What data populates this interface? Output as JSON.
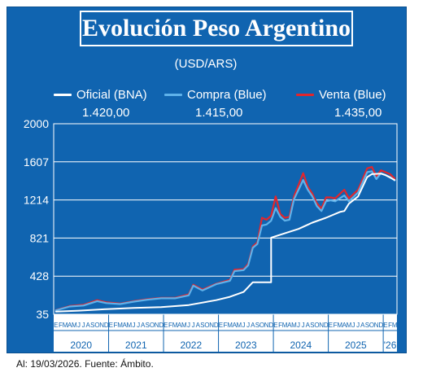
{
  "title": "Evolución Peso Argentino",
  "unit": "(USD/ARS)",
  "footnote": "Al: 19/03/2026. Fuente: Ámbito.",
  "colors": {
    "background": "#1064b0",
    "oficial": "#ffffff",
    "compra": "#5fb2ea",
    "venta": "#e2262c"
  },
  "legend": [
    {
      "name": "Oficial (BNA)",
      "value": "1.420,00"
    },
    {
      "name": "Compra (Blue)",
      "value": "1.415,00"
    },
    {
      "name": "Venta (Blue)",
      "value": "1.435,00"
    }
  ],
  "chart_data": {
    "type": "line",
    "title": "Evolución Peso Argentino",
    "ylabel": "(USD/ARS)",
    "ylim": [
      35,
      2000
    ],
    "xlim": [
      "2020-01",
      "2026-03"
    ],
    "yticks": [
      "2000",
      "1607",
      "1214",
      "821",
      "428",
      "35"
    ],
    "month_ticks": [
      "E",
      "F",
      "M",
      "A",
      "M",
      "J",
      "J",
      "A",
      "S",
      "O",
      "N",
      "D",
      "E",
      "F",
      "M",
      "A",
      "M",
      "J",
      "J",
      "A",
      "S",
      "O",
      "N",
      "D",
      "E",
      "F",
      "M",
      "A",
      "M",
      "J",
      "J",
      "A",
      "S",
      "O",
      "N",
      "D",
      "E",
      "F",
      "M",
      "A",
      "M",
      "J",
      "J",
      "A",
      "S",
      "O",
      "N",
      "D",
      "E",
      "F",
      "M",
      "A",
      "M",
      "J",
      "J",
      "A",
      "S",
      "O",
      "N",
      "D",
      "E",
      "F",
      "M",
      "A",
      "M",
      "J",
      "J",
      "A",
      "S",
      "O",
      "N",
      "D",
      "E",
      "F",
      "M"
    ],
    "year_labels": [
      "2020",
      "2021",
      "2022",
      "2023",
      "2024",
      "2025",
      "'26"
    ],
    "grid": true,
    "legend_position": "top",
    "series": [
      {
        "name": "Oficial (BNA)",
        "points": [
          [
            "2020-01",
            63
          ],
          [
            "2020-06",
            72
          ],
          [
            "2020-12",
            88
          ],
          [
            "2021-06",
            100
          ],
          [
            "2021-12",
            108
          ],
          [
            "2022-06",
            130
          ],
          [
            "2022-12",
            180
          ],
          [
            "2023-03",
            215
          ],
          [
            "2023-06",
            265
          ],
          [
            "2023-08",
            365
          ],
          [
            "2023-12",
            365
          ],
          [
            "2023-12",
            825
          ],
          [
            "2024-03",
            870
          ],
          [
            "2024-06",
            915
          ],
          [
            "2024-09",
            980
          ],
          [
            "2024-12",
            1030
          ],
          [
            "2025-03",
            1090
          ],
          [
            "2025-04",
            1100
          ],
          [
            "2025-05",
            1175
          ],
          [
            "2025-07",
            1250
          ],
          [
            "2025-09",
            1450
          ],
          [
            "2025-10",
            1480
          ],
          [
            "2025-12",
            1485
          ],
          [
            "2026-01",
            1470
          ],
          [
            "2026-03",
            1420
          ]
        ]
      },
      {
        "name": "Compra (Blue)",
        "points": [
          [
            "2020-01",
            75
          ],
          [
            "2020-04",
            115
          ],
          [
            "2020-07",
            125
          ],
          [
            "2020-10",
            170
          ],
          [
            "2020-12",
            150
          ],
          [
            "2021-03",
            140
          ],
          [
            "2021-06",
            165
          ],
          [
            "2021-09",
            185
          ],
          [
            "2021-12",
            200
          ],
          [
            "2022-03",
            200
          ],
          [
            "2022-06",
            230
          ],
          [
            "2022-07",
            330
          ],
          [
            "2022-09",
            280
          ],
          [
            "2022-12",
            345
          ],
          [
            "2023-03",
            380
          ],
          [
            "2023-04",
            480
          ],
          [
            "2023-06",
            490
          ],
          [
            "2023-07",
            540
          ],
          [
            "2023-08",
            720
          ],
          [
            "2023-09",
            760
          ],
          [
            "2023-10",
            950
          ],
          [
            "2023-11",
            960
          ],
          [
            "2023-12",
            1000
          ],
          [
            "2024-01",
            1130
          ],
          [
            "2024-02",
            1040
          ],
          [
            "2024-03",
            1000
          ],
          [
            "2024-04",
            1010
          ],
          [
            "2024-05",
            1220
          ],
          [
            "2024-07",
            1420
          ],
          [
            "2024-08",
            1320
          ],
          [
            "2024-09",
            1250
          ],
          [
            "2024-10",
            1150
          ],
          [
            "2024-11",
            1100
          ],
          [
            "2024-12",
            1200
          ],
          [
            "2025-01",
            1210
          ],
          [
            "2025-02",
            1200
          ],
          [
            "2025-04",
            1260
          ],
          [
            "2025-05",
            1200
          ],
          [
            "2025-07",
            1290
          ],
          [
            "2025-09",
            1500
          ],
          [
            "2025-10",
            1510
          ],
          [
            "2025-11",
            1430
          ],
          [
            "2025-12",
            1490
          ],
          [
            "2026-02",
            1450
          ],
          [
            "2026-03",
            1415
          ]
        ]
      },
      {
        "name": "Venta (Blue)",
        "points": [
          [
            "2020-01",
            78
          ],
          [
            "2020-04",
            120
          ],
          [
            "2020-07",
            132
          ],
          [
            "2020-10",
            180
          ],
          [
            "2020-12",
            158
          ],
          [
            "2021-03",
            145
          ],
          [
            "2021-06",
            170
          ],
          [
            "2021-09",
            190
          ],
          [
            "2021-12",
            205
          ],
          [
            "2022-03",
            205
          ],
          [
            "2022-06",
            240
          ],
          [
            "2022-07",
            340
          ],
          [
            "2022-09",
            290
          ],
          [
            "2022-12",
            350
          ],
          [
            "2023-03",
            390
          ],
          [
            "2023-04",
            495
          ],
          [
            "2023-06",
            500
          ],
          [
            "2023-07",
            555
          ],
          [
            "2023-08",
            735
          ],
          [
            "2023-09",
            775
          ],
          [
            "2023-10",
            1030
          ],
          [
            "2023-11",
            1010
          ],
          [
            "2023-12",
            1050
          ],
          [
            "2024-01",
            1250
          ],
          [
            "2024-02",
            1070
          ],
          [
            "2024-03",
            1030
          ],
          [
            "2024-04",
            1040
          ],
          [
            "2024-05",
            1250
          ],
          [
            "2024-07",
            1490
          ],
          [
            "2024-08",
            1350
          ],
          [
            "2024-09",
            1280
          ],
          [
            "2024-10",
            1180
          ],
          [
            "2024-11",
            1125
          ],
          [
            "2024-12",
            1240
          ],
          [
            "2025-01",
            1240
          ],
          [
            "2025-02",
            1230
          ],
          [
            "2025-04",
            1320
          ],
          [
            "2025-05",
            1230
          ],
          [
            "2025-07",
            1320
          ],
          [
            "2025-09",
            1540
          ],
          [
            "2025-10",
            1555
          ],
          [
            "2025-11",
            1460
          ],
          [
            "2025-12",
            1520
          ],
          [
            "2026-02",
            1480
          ],
          [
            "2026-03",
            1435
          ]
        ]
      }
    ]
  }
}
